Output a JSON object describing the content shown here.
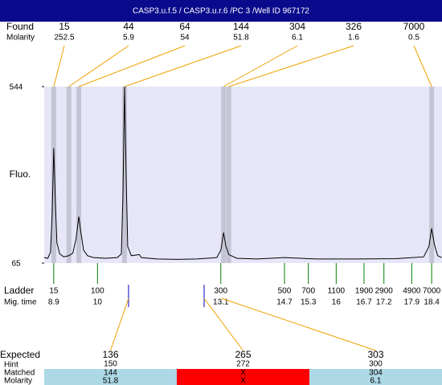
{
  "header": {
    "title": "CASP3.u.f.5 / CASP3.u.r.6 /PC 3 /Well ID 967172"
  },
  "found": {
    "label": "Found",
    "molarity_label": "Molarity",
    "peaks": [
      {
        "size": 15,
        "molarity": 252.5,
        "mig_time": 8.9
      },
      {
        "size": 44,
        "molarity": 5.9,
        "mig_time": 9.28
      },
      {
        "size": 64,
        "molarity": 54,
        "mig_time": 9.53
      },
      {
        "size": 144,
        "molarity": 51.8,
        "mig_time": 10.68
      },
      {
        "size": 304,
        "molarity": 6.1,
        "mig_time": 13.17
      },
      {
        "size": 326,
        "molarity": 1.6,
        "mig_time": 13.3
      },
      {
        "size": 7000,
        "molarity": 0.5,
        "mig_time": 18.4
      }
    ]
  },
  "chart_data": {
    "type": "line",
    "y_label": "Fluo.",
    "color": "#000000",
    "background": "#e6e6f8",
    "x": [
      8.66,
      8.75,
      8.82,
      8.86,
      8.9,
      8.94,
      8.98,
      9.05,
      9.15,
      9.28,
      9.38,
      9.46,
      9.53,
      9.58,
      9.65,
      9.75,
      9.9,
      10.2,
      10.5,
      10.6,
      10.64,
      10.68,
      10.72,
      10.76,
      10.85,
      11.05,
      11.1,
      11.5,
      12,
      12.5,
      13,
      13.1,
      13.17,
      13.23,
      13.3,
      13.5,
      14,
      14.7,
      15.5,
      16.5,
      17.5,
      18.2,
      18.33,
      18.4,
      18.47,
      18.55,
      18.65
    ],
    "values": [
      80,
      78,
      95,
      200,
      377,
      230,
      120,
      90,
      82,
      85,
      92,
      130,
      191,
      150,
      100,
      85,
      80,
      78,
      80,
      90,
      250,
      544,
      300,
      110,
      85,
      88,
      80,
      76,
      75,
      76,
      80,
      100,
      148,
      110,
      88,
      78,
      76,
      80,
      76,
      76,
      77,
      82,
      110,
      159,
      115,
      85,
      80
    ],
    "xlim": [
      8.66,
      18.66
    ],
    "ylim": [
      65,
      544
    ],
    "yticks": [
      65,
      544
    ]
  },
  "ladder": {
    "label": "Ladder",
    "mig_label": "Mig. time",
    "sizes": [
      15,
      100,
      300,
      500,
      700,
      1100,
      1900,
      2900,
      4900,
      7000
    ],
    "mig_times": [
      8.9,
      10,
      13.1,
      14.7,
      15.3,
      16,
      16.7,
      17.2,
      17.9,
      18.4
    ]
  },
  "expected": {
    "label": "Expected",
    "hint_label": "Hint",
    "matched_label": "Matched",
    "molarity_label": "Molarity",
    "items": [
      {
        "size": 136,
        "hint": 150,
        "matched": 144,
        "molarity": 51.8,
        "mig_time": 10.78,
        "color": "#add8e6"
      },
      {
        "size": 265,
        "hint": 272,
        "matched": "X",
        "molarity": "X",
        "mig_time": 12.68,
        "color": "#ff0000"
      },
      {
        "size": 303,
        "hint": 300,
        "matched": 304,
        "molarity": 6.1,
        "mig_time": 13.12,
        "color": "#add8e6"
      }
    ]
  }
}
